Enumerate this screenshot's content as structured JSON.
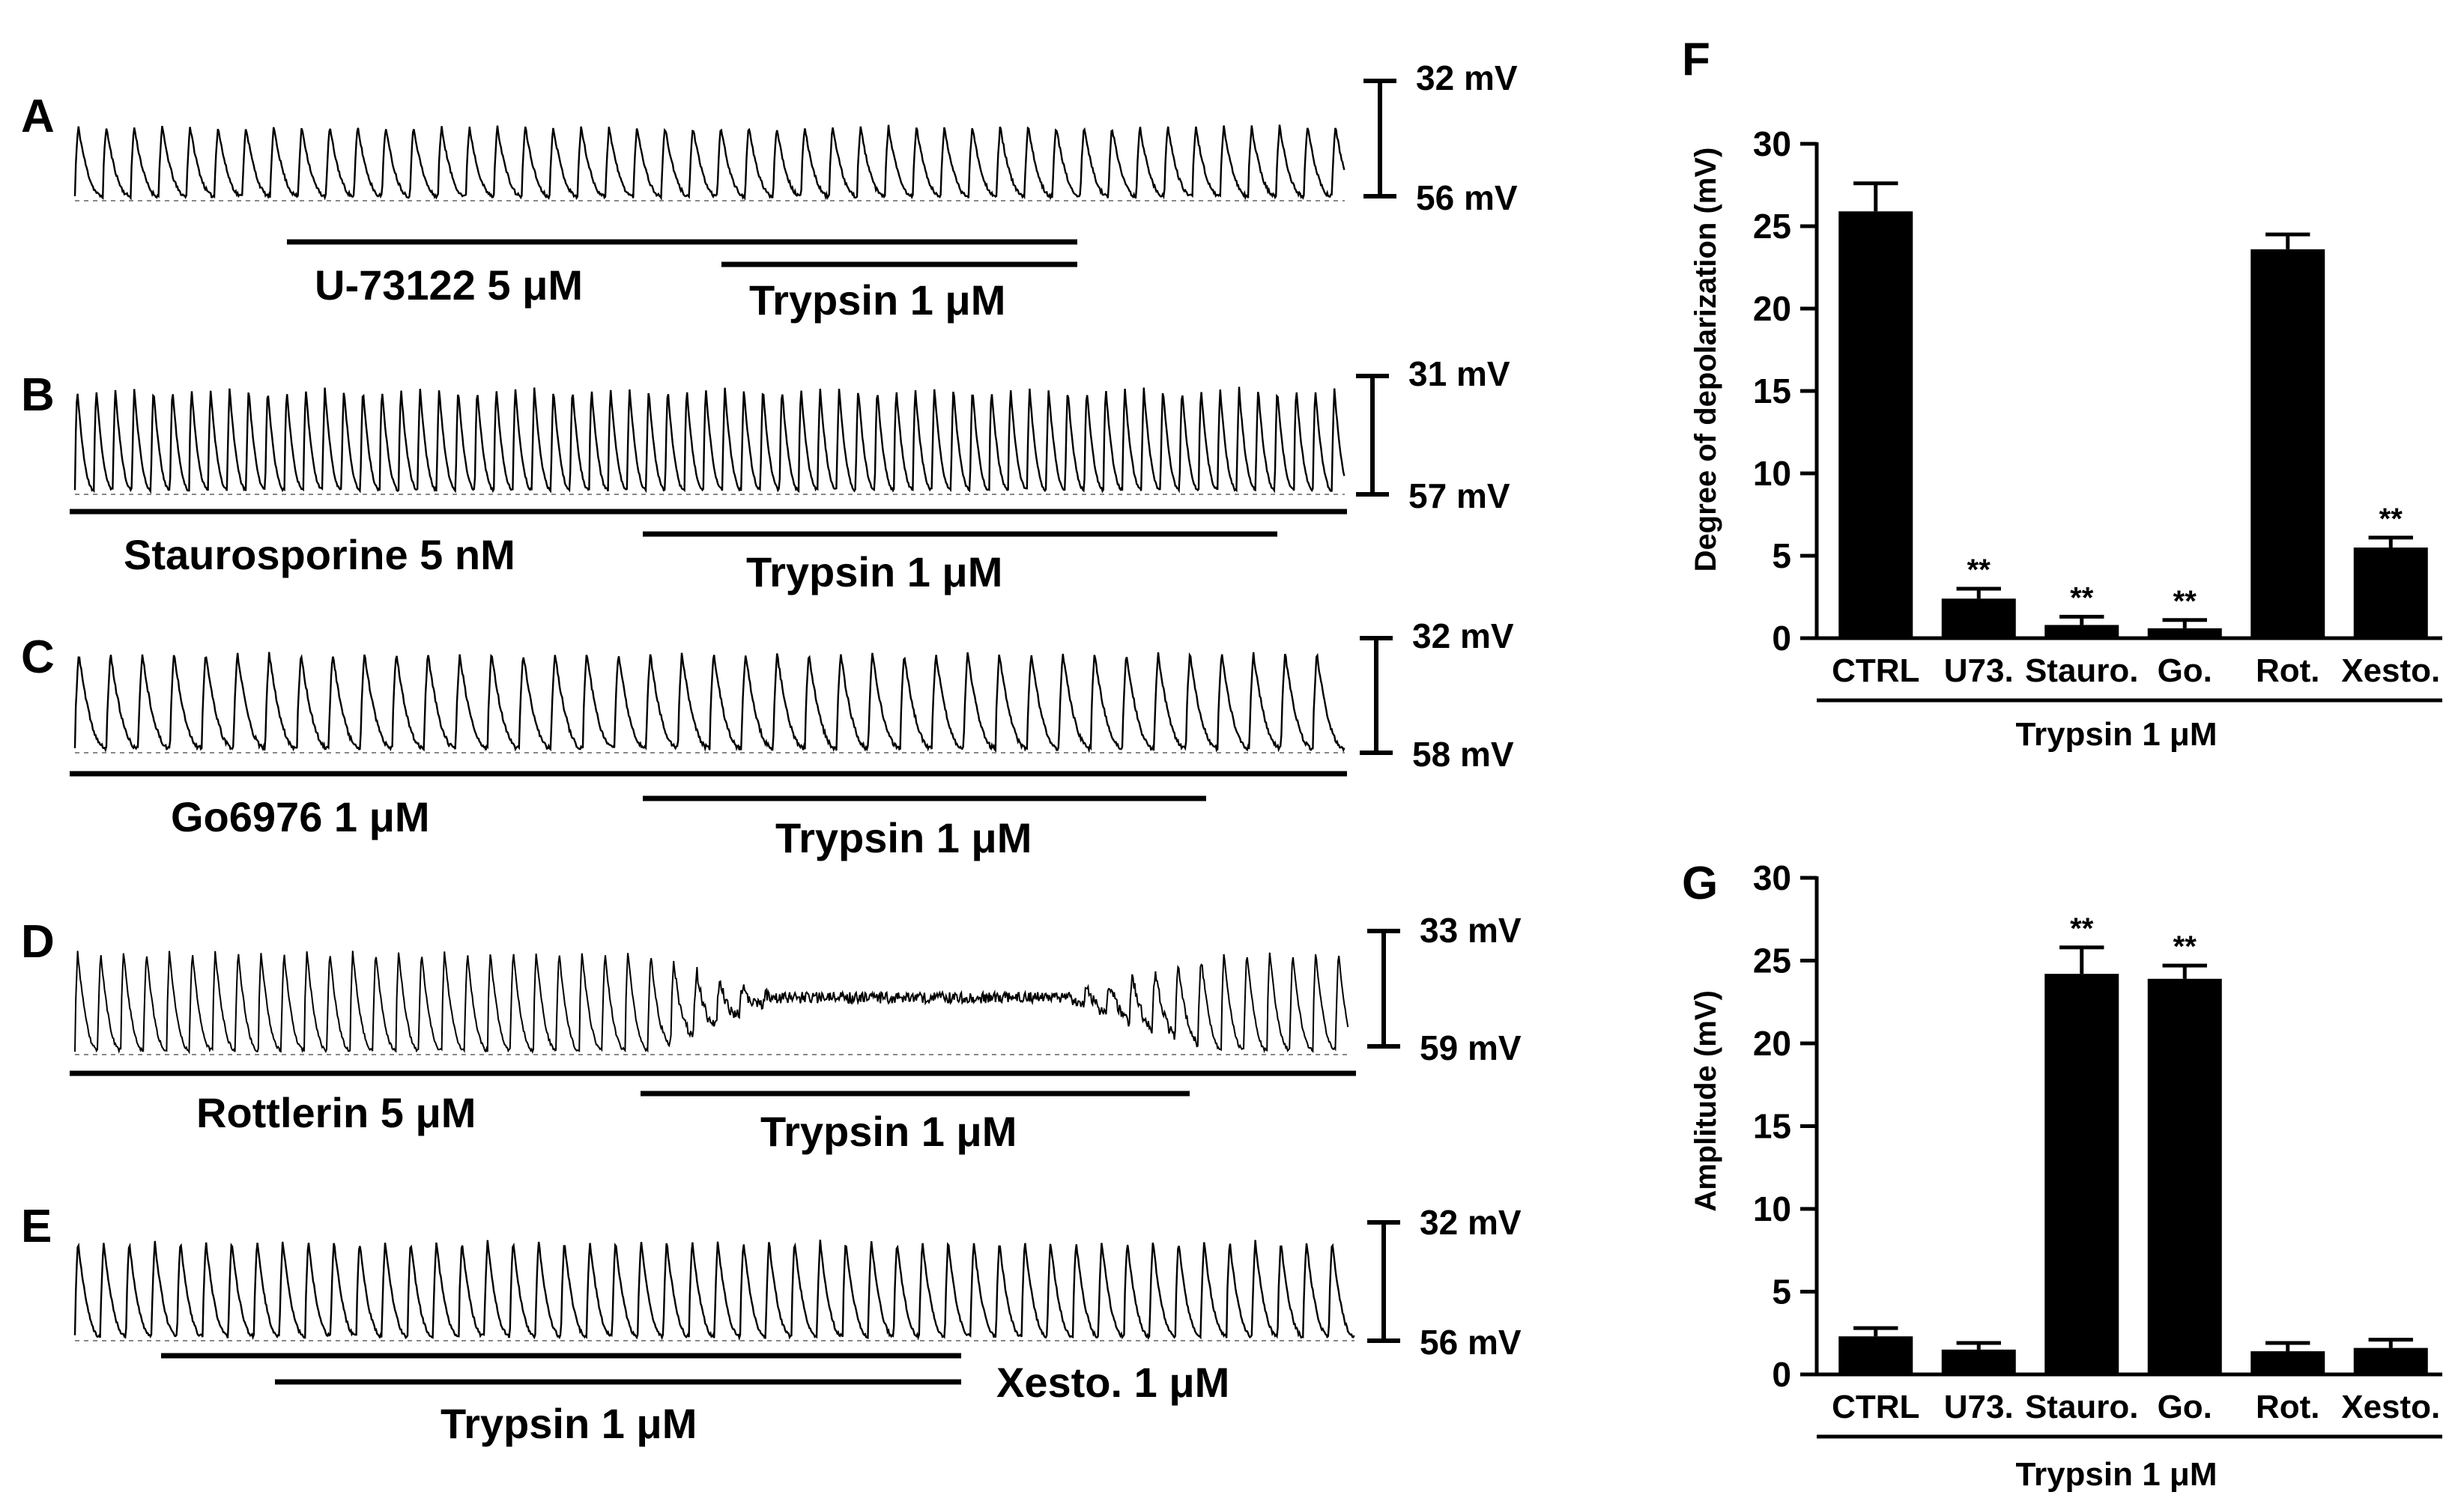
{
  "figure": {
    "panels": [
      {
        "letter": "A",
        "scale_top": "32 mV",
        "scale_bottom": "56 mV",
        "bars": [
          {
            "label": "U-73122  5 μM",
            "x_start": 0.17,
            "x_end": 0.79
          },
          {
            "label": "Trypsin 1 μM",
            "x_start": 0.51,
            "x_end": 0.79
          }
        ]
      },
      {
        "letter": "B",
        "scale_top": "31 mV",
        "scale_bottom": "57 mV",
        "bars": [
          {
            "label": "Staurosporine  5 nM",
            "x_start": 0.0,
            "x_end": 1.0
          },
          {
            "label": "Trypsin 1 μM",
            "x_start": 0.45,
            "x_end": 0.95
          }
        ]
      },
      {
        "letter": "C",
        "scale_top": "32 mV",
        "scale_bottom": "58 mV",
        "bars": [
          {
            "label": "Go6976  1 μM",
            "x_start": 0.0,
            "x_end": 1.0
          },
          {
            "label": "Trypsin 1 μM",
            "x_start": 0.45,
            "x_end": 0.89
          }
        ]
      },
      {
        "letter": "D",
        "scale_top": "33 mV",
        "scale_bottom": "59 mV",
        "bars": [
          {
            "label": "Rottlerin 5 μM",
            "x_start": 0.0,
            "x_end": 1.0
          },
          {
            "label": "Trypsin 1 μM",
            "x_start": 0.45,
            "x_end": 0.87
          }
        ]
      },
      {
        "letter": "E",
        "scale_top": "32 mV",
        "scale_bottom": "56 mV",
        "bars": [
          {
            "label": "Xesto. 1 μM",
            "x_start": 0.07,
            "x_end": 0.69
          },
          {
            "label": "Trypsin 1 μM",
            "x_start": 0.16,
            "x_end": 0.69
          }
        ]
      }
    ]
  },
  "chart_data": [
    {
      "panel": "F",
      "type": "bar",
      "categories": [
        "CTRL",
        "U73.",
        "Stauro.",
        "Go.",
        "Rot.",
        "Xesto."
      ],
      "values": [
        25.9,
        2.4,
        0.8,
        0.6,
        23.6,
        5.5
      ],
      "errors": [
        1.7,
        0.6,
        0.5,
        0.5,
        0.9,
        0.6
      ],
      "significance": [
        "",
        "**",
        "**",
        "**",
        "",
        "**"
      ],
      "ylabel": "Degree of depolarization (mV)",
      "xgroup_label": "Trypsin 1 μM",
      "ylim": [
        0,
        30
      ],
      "yticks": [
        "0",
        "5",
        "10",
        "15",
        "20",
        "25",
        "30"
      ],
      "bar_color": "#000000"
    },
    {
      "panel": "G",
      "type": "bar",
      "categories": [
        "CTRL",
        "U73.",
        "Stauro.",
        "Go.",
        "Rot.",
        "Xesto."
      ],
      "values": [
        2.3,
        1.5,
        24.2,
        23.9,
        1.4,
        1.6
      ],
      "errors": [
        0.5,
        0.4,
        1.6,
        0.8,
        0.5,
        0.5
      ],
      "significance": [
        "",
        "",
        "**",
        "**",
        "",
        ""
      ],
      "ylabel": "Amplitude (mV)",
      "xgroup_label": "Trypsin 1 μM",
      "ylim": [
        0,
        30
      ],
      "yticks": [
        "0",
        "5",
        "10",
        "15",
        "20",
        "25",
        "30"
      ],
      "bar_color": "#000000"
    }
  ]
}
